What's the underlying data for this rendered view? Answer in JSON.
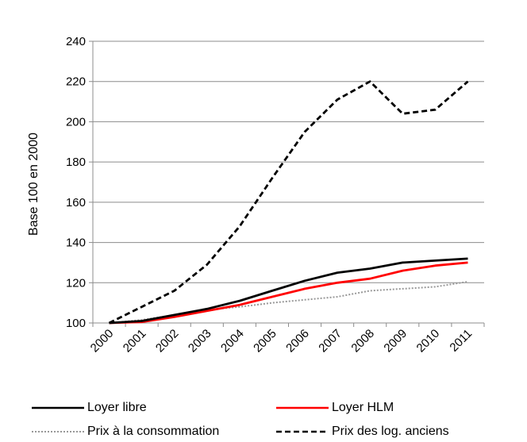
{
  "chart_data": {
    "type": "line",
    "title": "",
    "xlabel": "",
    "ylabel": "Base 100 en 2000",
    "ylim": [
      100,
      240
    ],
    "yticks": [
      "100",
      "120",
      "140",
      "160",
      "180",
      "200",
      "220",
      "240"
    ],
    "categories": [
      "2000",
      "2001",
      "2002",
      "2003",
      "2004",
      "2005",
      "2006",
      "2007",
      "2008",
      "2009",
      "2010",
      "2011"
    ],
    "grid": "horizontal",
    "legend_position": "bottom",
    "series": [
      {
        "name": "Loyer libre",
        "color": "#000000",
        "style": "solid",
        "values": [
          100,
          101,
          104,
          107,
          111,
          116,
          121,
          125,
          127,
          130,
          131,
          132
        ]
      },
      {
        "name": "Loyer HLM",
        "color": "#ff0000",
        "style": "solid",
        "values": [
          100,
          100.5,
          103,
          106,
          109,
          113,
          117,
          120,
          122,
          126,
          128.5,
          130
        ]
      },
      {
        "name": "Prix à la consommation",
        "color": "#999999",
        "style": "dotted",
        "values": [
          100,
          101.5,
          104,
          106.5,
          108,
          110,
          111.5,
          113,
          116,
          117,
          118,
          120.5
        ]
      },
      {
        "name": "Prix des log. anciens",
        "color": "#000000",
        "style": "dashed",
        "values": [
          100,
          108,
          116,
          129,
          148,
          172,
          195,
          211,
          220,
          204,
          206,
          220
        ]
      }
    ]
  }
}
